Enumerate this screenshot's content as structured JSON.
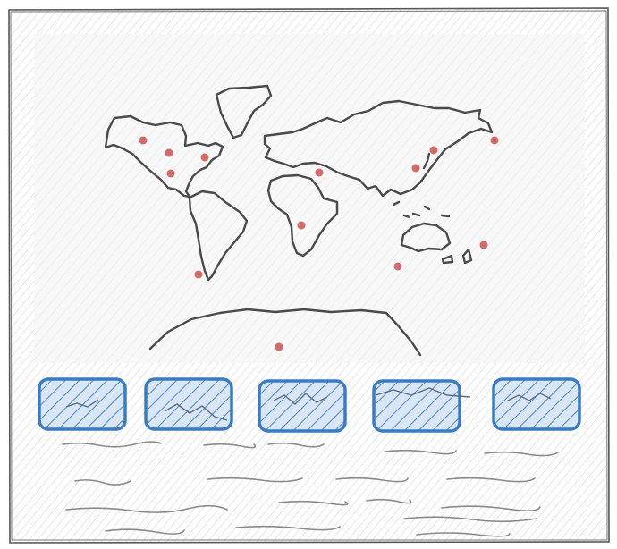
{
  "wireframe": {
    "title": "",
    "colors": {
      "outline": "#555555",
      "hatch": "#c9c9c9",
      "map_background": "#f8f8f8",
      "marker": "#d46a6a",
      "thumbnail": "#3a7cc4",
      "thumbnail_fill": "#d8e6f5",
      "text_line": "#8a8a8a"
    },
    "map": {
      "kind": "world-map-sketch",
      "marker_count": 13
    },
    "thumbnails": [
      {
        "icon": "thumbnail-placeholder"
      },
      {
        "icon": "thumbnail-placeholder"
      },
      {
        "icon": "thumbnail-placeholder"
      },
      {
        "icon": "thumbnail-placeholder"
      },
      {
        "icon": "thumbnail-placeholder"
      }
    ],
    "text_placeholder_rows": 4
  }
}
